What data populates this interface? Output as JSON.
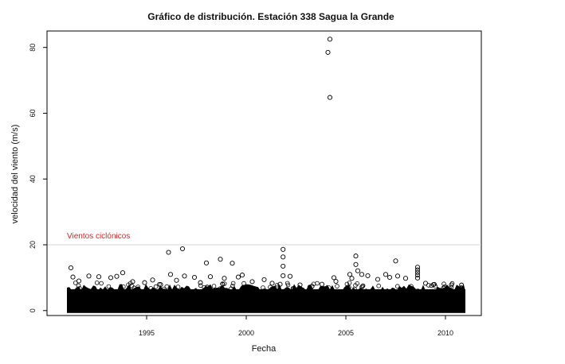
{
  "chart_data": {
    "type": "scatter",
    "title": "Gráfico de distribución. Estación 338 Sagua la Grande",
    "xlabel": "Fecha",
    "ylabel": "velocidad del viento (m/s)",
    "xlim": [
      1990.0,
      2011.8
    ],
    "ylim": [
      -1.5,
      85
    ],
    "x_ticks": [
      1995,
      2000,
      2005,
      2010
    ],
    "x_tick_labels": [
      "1995",
      "2000",
      "2005",
      "2010"
    ],
    "y_ticks": [
      0,
      20,
      40,
      60,
      80
    ],
    "y_tick_labels": [
      "0",
      "20",
      "40",
      "60",
      "80"
    ],
    "data_range": [
      1991.0,
      2011.0
    ],
    "dense_band_max": 6.5,
    "marker": "open-circle",
    "marker_color": "#000000",
    "threshold": {
      "y": 20,
      "label": "Vientos ciclónicos",
      "color": "#e8191f",
      "line_color": "#c8c8c8"
    },
    "points": [
      {
        "x": 1991.2,
        "y": 13.0
      },
      {
        "x": 1991.3,
        "y": 10.2
      },
      {
        "x": 1991.6,
        "y": 9.0
      },
      {
        "x": 1992.1,
        "y": 10.5
      },
      {
        "x": 1992.6,
        "y": 10.3
      },
      {
        "x": 1993.2,
        "y": 10.0
      },
      {
        "x": 1993.5,
        "y": 10.4
      },
      {
        "x": 1993.8,
        "y": 11.5
      },
      {
        "x": 1994.3,
        "y": 8.8
      },
      {
        "x": 1994.9,
        "y": 8.5
      },
      {
        "x": 1995.3,
        "y": 9.3
      },
      {
        "x": 1995.7,
        "y": 7.9
      },
      {
        "x": 1996.1,
        "y": 17.7
      },
      {
        "x": 1996.2,
        "y": 11.0
      },
      {
        "x": 1996.5,
        "y": 9.2
      },
      {
        "x": 1996.8,
        "y": 18.8
      },
      {
        "x": 1996.9,
        "y": 10.5
      },
      {
        "x": 1997.4,
        "y": 10.1
      },
      {
        "x": 1997.7,
        "y": 8.5
      },
      {
        "x": 1998.0,
        "y": 14.5
      },
      {
        "x": 1998.2,
        "y": 10.3
      },
      {
        "x": 1998.7,
        "y": 15.6
      },
      {
        "x": 1998.9,
        "y": 9.8
      },
      {
        "x": 1999.3,
        "y": 14.4
      },
      {
        "x": 1999.6,
        "y": 10.2
      },
      {
        "x": 1999.8,
        "y": 10.8
      },
      {
        "x": 2000.3,
        "y": 8.8
      },
      {
        "x": 2000.9,
        "y": 9.4
      },
      {
        "x": 2001.3,
        "y": 8.3
      },
      {
        "x": 2001.7,
        "y": 8.0
      },
      {
        "x": 2001.85,
        "y": 18.6
      },
      {
        "x": 2001.85,
        "y": 16.3
      },
      {
        "x": 2001.85,
        "y": 13.5
      },
      {
        "x": 2001.85,
        "y": 10.6
      },
      {
        "x": 2002.2,
        "y": 10.4
      },
      {
        "x": 2002.7,
        "y": 7.8
      },
      {
        "x": 2003.3,
        "y": 7.4
      },
      {
        "x": 2003.8,
        "y": 8.0
      },
      {
        "x": 2004.1,
        "y": 78.5
      },
      {
        "x": 2004.2,
        "y": 82.5
      },
      {
        "x": 2004.2,
        "y": 64.8
      },
      {
        "x": 2004.4,
        "y": 10.0
      },
      {
        "x": 2004.5,
        "y": 8.9
      },
      {
        "x": 2005.2,
        "y": 11.0
      },
      {
        "x": 2005.3,
        "y": 9.8
      },
      {
        "x": 2005.5,
        "y": 16.6
      },
      {
        "x": 2005.5,
        "y": 14.0
      },
      {
        "x": 2005.6,
        "y": 12.1
      },
      {
        "x": 2005.8,
        "y": 11.0
      },
      {
        "x": 2006.1,
        "y": 10.6
      },
      {
        "x": 2006.6,
        "y": 9.5
      },
      {
        "x": 2007.0,
        "y": 11.0
      },
      {
        "x": 2007.2,
        "y": 10.1
      },
      {
        "x": 2007.5,
        "y": 15.1
      },
      {
        "x": 2007.6,
        "y": 10.5
      },
      {
        "x": 2008.0,
        "y": 9.8
      },
      {
        "x": 2008.6,
        "y": 13.2
      },
      {
        "x": 2008.6,
        "y": 12.4
      },
      {
        "x": 2008.6,
        "y": 11.6
      },
      {
        "x": 2008.6,
        "y": 10.8
      },
      {
        "x": 2008.6,
        "y": 9.9
      },
      {
        "x": 2009.0,
        "y": 8.3
      },
      {
        "x": 2009.4,
        "y": 7.9
      },
      {
        "x": 2009.9,
        "y": 6.8
      },
      {
        "x": 2010.3,
        "y": 7.8
      },
      {
        "x": 2010.8,
        "y": 6.9
      }
    ]
  }
}
